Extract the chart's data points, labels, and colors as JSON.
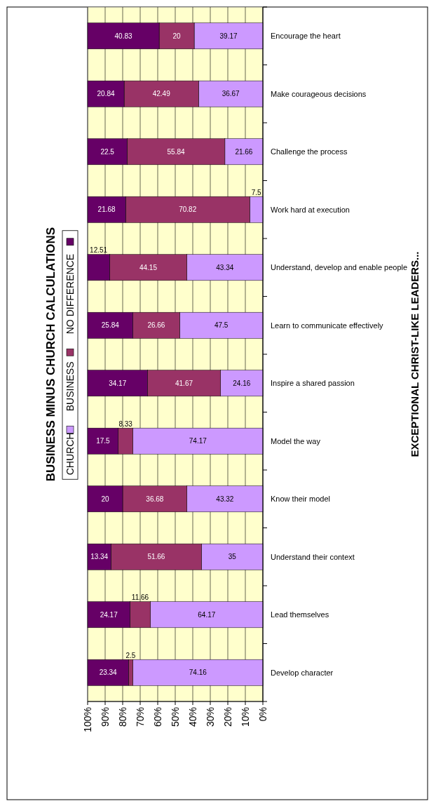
{
  "chart_data": {
    "type": "bar",
    "stacked": true,
    "orientation": "horizontal",
    "title": "BUSINESS MINUS CHURCH CALCULATIONS",
    "ylabel": "EXCEPTIONAL CHRIST-LIKE LEADERS...",
    "categories": [
      "Encourage the heart",
      "Make courageous decisions",
      "Challenge the process",
      "Work hard at execution",
      "Understand, develop and enable people",
      "Learn to communicate effectively",
      "Inspire a shared passion",
      "Model the way",
      "Know their model",
      "Understand their context",
      "Lead themselves",
      "Develop character"
    ],
    "series": [
      {
        "name": "CHURCH",
        "color": "#cc99ff",
        "values": [
          39.17,
          36.67,
          21.66,
          7.5,
          43.34,
          47.5,
          24.16,
          74.17,
          43.32,
          35,
          64.17,
          74.16
        ]
      },
      {
        "name": "BUSINESS",
        "color": "#993366",
        "values": [
          20,
          42.49,
          55.84,
          70.82,
          44.15,
          26.66,
          41.67,
          8.33,
          36.68,
          51.66,
          11.66,
          2.5
        ]
      },
      {
        "name": "NO DIFFERENCE",
        "color": "#660066",
        "values": [
          40.83,
          20.84,
          22.5,
          21.68,
          12.51,
          25.84,
          34.17,
          17.5,
          20,
          13.34,
          24.17,
          23.34
        ]
      }
    ],
    "xlim": [
      100,
      0
    ],
    "xticks": [
      {
        "value": 100,
        "label": "100%"
      },
      {
        "value": 90,
        "label": "90%"
      },
      {
        "value": 80,
        "label": "80%"
      },
      {
        "value": 70,
        "label": "70%"
      },
      {
        "value": 60,
        "label": "60%"
      },
      {
        "value": 50,
        "label": "50%"
      },
      {
        "value": 40,
        "label": "40%"
      },
      {
        "value": 30,
        "label": "30%"
      },
      {
        "value": 20,
        "label": "20%"
      },
      {
        "value": 10,
        "label": "10%"
      },
      {
        "value": 0,
        "label": "0%"
      }
    ],
    "grid": "x",
    "legend": "left",
    "data_labels": true
  }
}
